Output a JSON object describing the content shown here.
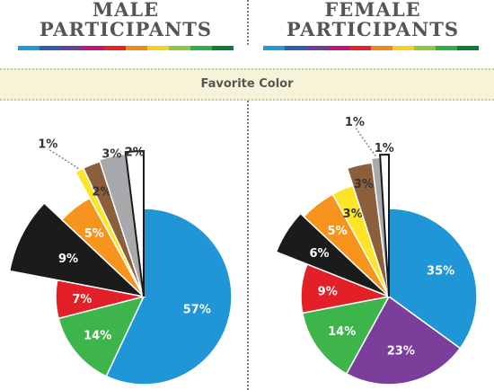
{
  "headers": {
    "left_line1": "MALE",
    "left_line2": "PARTICIPANTS",
    "right_line1": "FEMALE",
    "right_line2": "PARTICIPANTS"
  },
  "band_label": "Favorite Color",
  "stripe_colors": [
    "#1f9ad6",
    "#2b5fb0",
    "#6a3f99",
    "#c0157a",
    "#e8212a",
    "#f28a1b",
    "#f6d31c",
    "#8fc73e",
    "#2fae4a",
    "#0f7d3a"
  ],
  "chart_data": [
    {
      "type": "pie",
      "title": "MALE PARTICIPANTS",
      "categories": [
        "Blue",
        "Green",
        "Red",
        "Black",
        "Orange",
        "Yellow",
        "Brown",
        "Gray",
        "White"
      ],
      "values": [
        57,
        14,
        7,
        9,
        5,
        1,
        2,
        3,
        2
      ],
      "labels": [
        "57%",
        "14%",
        "7%",
        "9%",
        "5%",
        "1%",
        "2%",
        "3%",
        "2%"
      ],
      "colors": [
        "#2196d6",
        "#3db54a",
        "#e32028",
        "#1b1b1b",
        "#f7941d",
        "#fde427",
        "#8b5e3c",
        "#a7a9ac",
        "#ffffff"
      ]
    },
    {
      "type": "pie",
      "title": "FEMALE PARTICIPANTS",
      "categories": [
        "Blue",
        "Purple",
        "Green",
        "Red",
        "Black",
        "Orange",
        "Yellow",
        "Brown",
        "Gray",
        "White"
      ],
      "values": [
        35,
        23,
        14,
        9,
        6,
        5,
        3,
        3,
        1,
        1
      ],
      "labels": [
        "35%",
        "23%",
        "14%",
        "9%",
        "6%",
        "5%",
        "3%",
        "3%",
        "1%",
        "1%"
      ],
      "colors": [
        "#2196d6",
        "#7b3f9b",
        "#3db54a",
        "#e32028",
        "#1b1b1b",
        "#f7941d",
        "#fde427",
        "#8b5e3c",
        "#a7a9ac",
        "#ffffff"
      ]
    }
  ]
}
